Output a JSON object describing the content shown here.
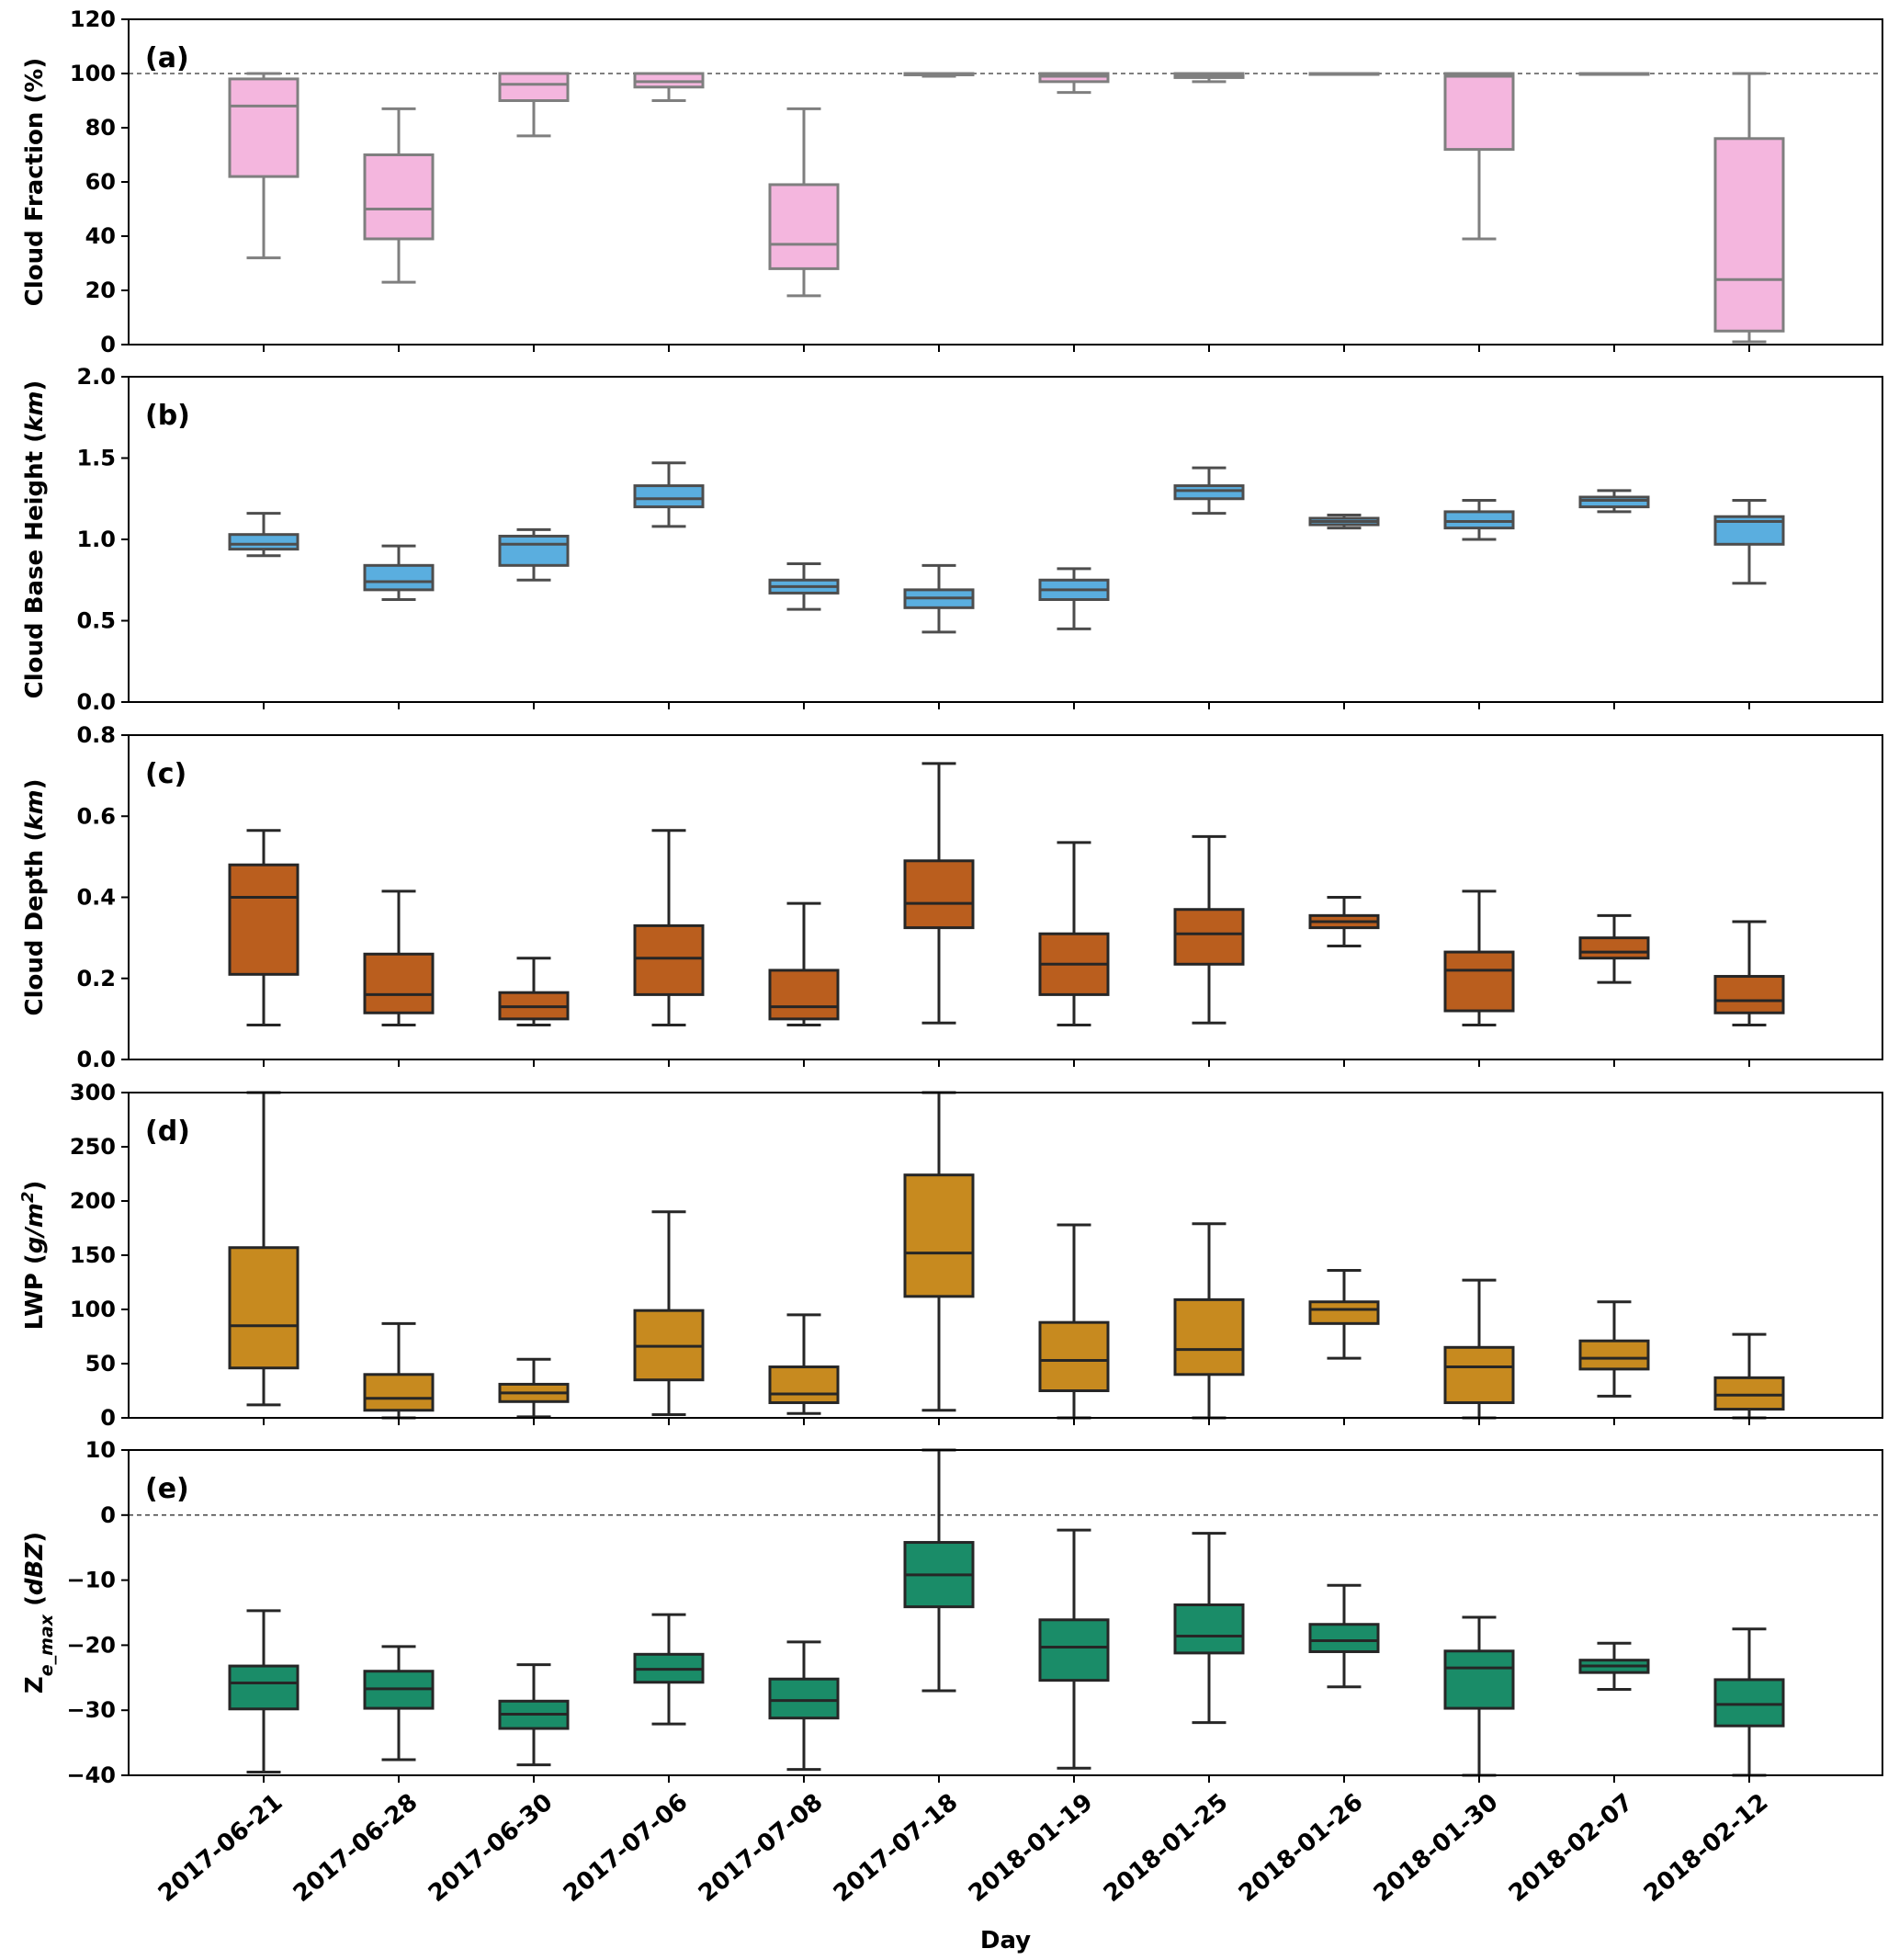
{
  "chart_data": {
    "type": "boxplot",
    "categories": [
      "2017-06-21",
      "2017-06-28",
      "2017-06-30",
      "2017-07-06",
      "2017-07-08",
      "2017-07-18",
      "2018-01-19",
      "2018-01-25",
      "2018-01-26",
      "2018-01-30",
      "2018-02-07",
      "2018-02-12"
    ],
    "xlabel": "Day",
    "panels": [
      {
        "label": "(a)",
        "ylabel": "Cloud Fraction (%)",
        "ylim": [
          0,
          120
        ],
        "yticks": [
          0,
          20,
          40,
          60,
          80,
          100,
          120
        ],
        "yticklabels": [
          "0",
          "20",
          "40",
          "60",
          "80",
          "100",
          "120"
        ],
        "refline": 100,
        "color": "#F4B6DE",
        "edge": "#7f7f7f",
        "boxes": [
          {
            "whislo": 32,
            "q1": 62,
            "med": 88,
            "q3": 98,
            "whishi": 100
          },
          {
            "whislo": 23,
            "q1": 39,
            "med": 50,
            "q3": 70,
            "whishi": 87
          },
          {
            "whislo": 77,
            "q1": 90,
            "med": 96,
            "q3": 100,
            "whishi": 100
          },
          {
            "whislo": 90,
            "q1": 95,
            "med": 97,
            "q3": 100,
            "whishi": 100
          },
          {
            "whislo": 18,
            "q1": 28,
            "med": 37,
            "q3": 59,
            "whishi": 87
          },
          {
            "whislo": 99,
            "q1": 99.5,
            "med": 100,
            "q3": 100,
            "whishi": 100
          },
          {
            "whislo": 93,
            "q1": 97,
            "med": 99,
            "q3": 100,
            "whishi": 100
          },
          {
            "whislo": 97,
            "q1": 98.5,
            "med": 99.5,
            "q3": 100,
            "whishi": 100
          },
          {
            "whislo": 100,
            "q1": 100,
            "med": 100,
            "q3": 100,
            "whishi": 100
          },
          {
            "whislo": 39,
            "q1": 72,
            "med": 99,
            "q3": 100,
            "whishi": 100
          },
          {
            "whislo": 100,
            "q1": 100,
            "med": 100,
            "q3": 100,
            "whishi": 100
          },
          {
            "whislo": 1,
            "q1": 5,
            "med": 24,
            "q3": 76,
            "whishi": 100
          }
        ]
      },
      {
        "label": "(b)",
        "ylabel": "Cloud Base Height",
        "yunit": "km",
        "ylim": [
          0,
          2.0
        ],
        "yticks": [
          0,
          0.5,
          1.0,
          1.5,
          2.0
        ],
        "yticklabels": [
          "0.0",
          "0.5",
          "1.0",
          "1.5",
          "2.0"
        ],
        "color": "#5AAEDF",
        "edge": "#4d4d4d",
        "boxes": [
          {
            "whislo": 0.9,
            "q1": 0.94,
            "med": 0.97,
            "q3": 1.03,
            "whishi": 1.16
          },
          {
            "whislo": 0.63,
            "q1": 0.69,
            "med": 0.74,
            "q3": 0.84,
            "whishi": 0.96
          },
          {
            "whislo": 0.75,
            "q1": 0.84,
            "med": 0.97,
            "q3": 1.02,
            "whishi": 1.06
          },
          {
            "whislo": 1.08,
            "q1": 1.2,
            "med": 1.25,
            "q3": 1.33,
            "whishi": 1.47
          },
          {
            "whislo": 0.57,
            "q1": 0.67,
            "med": 0.71,
            "q3": 0.75,
            "whishi": 0.85
          },
          {
            "whislo": 0.43,
            "q1": 0.58,
            "med": 0.64,
            "q3": 0.69,
            "whishi": 0.84
          },
          {
            "whislo": 0.45,
            "q1": 0.63,
            "med": 0.69,
            "q3": 0.75,
            "whishi": 0.82
          },
          {
            "whislo": 1.16,
            "q1": 1.25,
            "med": 1.3,
            "q3": 1.33,
            "whishi": 1.44
          },
          {
            "whislo": 1.07,
            "q1": 1.09,
            "med": 1.11,
            "q3": 1.13,
            "whishi": 1.15
          },
          {
            "whislo": 1.0,
            "q1": 1.07,
            "med": 1.11,
            "q3": 1.17,
            "whishi": 1.24
          },
          {
            "whislo": 1.17,
            "q1": 1.2,
            "med": 1.24,
            "q3": 1.26,
            "whishi": 1.3
          },
          {
            "whislo": 0.73,
            "q1": 0.97,
            "med": 1.11,
            "q3": 1.14,
            "whishi": 1.24
          }
        ]
      },
      {
        "label": "(c)",
        "ylabel": "Cloud Depth",
        "yunit": "km",
        "ylim": [
          0,
          0.8
        ],
        "yticks": [
          0,
          0.2,
          0.4,
          0.6,
          0.8
        ],
        "yticklabels": [
          "0.0",
          "0.2",
          "0.4",
          "0.6",
          "0.8"
        ],
        "color": "#BA5E1E",
        "edge": "#262626",
        "boxes": [
          {
            "whislo": 0.085,
            "q1": 0.21,
            "med": 0.4,
            "q3": 0.48,
            "whishi": 0.565
          },
          {
            "whislo": 0.085,
            "q1": 0.115,
            "med": 0.16,
            "q3": 0.26,
            "whishi": 0.415
          },
          {
            "whislo": 0.085,
            "q1": 0.1,
            "med": 0.13,
            "q3": 0.165,
            "whishi": 0.25
          },
          {
            "whislo": 0.085,
            "q1": 0.16,
            "med": 0.25,
            "q3": 0.33,
            "whishi": 0.565
          },
          {
            "whislo": 0.085,
            "q1": 0.1,
            "med": 0.13,
            "q3": 0.22,
            "whishi": 0.385
          },
          {
            "whislo": 0.09,
            "q1": 0.325,
            "med": 0.385,
            "q3": 0.49,
            "whishi": 0.73
          },
          {
            "whislo": 0.085,
            "q1": 0.16,
            "med": 0.235,
            "q3": 0.31,
            "whishi": 0.535
          },
          {
            "whislo": 0.09,
            "q1": 0.235,
            "med": 0.31,
            "q3": 0.37,
            "whishi": 0.55
          },
          {
            "whislo": 0.28,
            "q1": 0.325,
            "med": 0.34,
            "q3": 0.355,
            "whishi": 0.4
          },
          {
            "whislo": 0.085,
            "q1": 0.12,
            "med": 0.22,
            "q3": 0.265,
            "whishi": 0.415
          },
          {
            "whislo": 0.19,
            "q1": 0.25,
            "med": 0.265,
            "q3": 0.3,
            "whishi": 0.355
          },
          {
            "whislo": 0.085,
            "q1": 0.115,
            "med": 0.145,
            "q3": 0.205,
            "whishi": 0.34
          }
        ]
      },
      {
        "label": "(d)",
        "ylabel": "LWP",
        "yunit": "g/m",
        "yunit_sup": "2",
        "ylim": [
          0,
          300
        ],
        "yticks": [
          0,
          50,
          100,
          150,
          200,
          250,
          300
        ],
        "yticklabels": [
          "0",
          "50",
          "100",
          "150",
          "200",
          "250",
          "300"
        ],
        "color": "#C78A1F",
        "edge": "#262626",
        "boxes": [
          {
            "whislo": 12,
            "q1": 46,
            "med": 85,
            "q3": 157,
            "whishi": 300
          },
          {
            "whislo": 0,
            "q1": 7,
            "med": 18,
            "q3": 40,
            "whishi": 87
          },
          {
            "whislo": 1,
            "q1": 15,
            "med": 23,
            "q3": 31,
            "whishi": 54
          },
          {
            "whislo": 3,
            "q1": 35,
            "med": 66,
            "q3": 99,
            "whishi": 190
          },
          {
            "whislo": 4,
            "q1": 14,
            "med": 22,
            "q3": 47,
            "whishi": 95
          },
          {
            "whislo": 7,
            "q1": 112,
            "med": 152,
            "q3": 224,
            "whishi": 300
          },
          {
            "whislo": 0,
            "q1": 25,
            "med": 53,
            "q3": 88,
            "whishi": 178
          },
          {
            "whislo": 0,
            "q1": 40,
            "med": 63,
            "q3": 109,
            "whishi": 179
          },
          {
            "whislo": 55,
            "q1": 87,
            "med": 100,
            "q3": 107,
            "whishi": 136
          },
          {
            "whislo": 0,
            "q1": 14,
            "med": 47,
            "q3": 65,
            "whishi": 127
          },
          {
            "whislo": 20,
            "q1": 45,
            "med": 55,
            "q3": 71,
            "whishi": 107
          },
          {
            "whislo": 0,
            "q1": 8,
            "med": 21,
            "q3": 37,
            "whishi": 77
          }
        ]
      },
      {
        "label": "(e)",
        "ylabel": "Z",
        "ysub": "e_max",
        "yunit": "dBZ",
        "ylim": [
          -40,
          10
        ],
        "yticks": [
          -40,
          -30,
          -20,
          -10,
          0,
          10
        ],
        "yticklabels": [
          "−40",
          "−30",
          "−20",
          "−10",
          "0",
          "10"
        ],
        "refline": 0,
        "color": "#1A8C68",
        "edge": "#262626",
        "boxes": [
          {
            "whislo": -39.5,
            "q1": -29.8,
            "med": -25.8,
            "q3": -23.2,
            "whishi": -14.7
          },
          {
            "whislo": -37.6,
            "q1": -29.7,
            "med": -26.7,
            "q3": -24.0,
            "whishi": -20.2
          },
          {
            "whislo": -38.4,
            "q1": -32.8,
            "med": -30.6,
            "q3": -28.6,
            "whishi": -23.0
          },
          {
            "whislo": -32.1,
            "q1": -25.7,
            "med": -23.7,
            "q3": -21.4,
            "whishi": -15.3
          },
          {
            "whislo": -39.1,
            "q1": -31.2,
            "med": -28.5,
            "q3": -25.2,
            "whishi": -19.5
          },
          {
            "whislo": -27.0,
            "q1": -14.1,
            "med": -9.2,
            "q3": -4.2,
            "whishi": 10.0
          },
          {
            "whislo": -38.9,
            "q1": -25.4,
            "med": -20.3,
            "q3": -16.1,
            "whishi": -2.3
          },
          {
            "whislo": -31.9,
            "q1": -21.2,
            "med": -18.6,
            "q3": -13.8,
            "whishi": -2.8
          },
          {
            "whislo": -26.4,
            "q1": -21.0,
            "med": -19.3,
            "q3": -16.8,
            "whishi": -10.8
          },
          {
            "whislo": -40.0,
            "q1": -29.7,
            "med": -23.5,
            "q3": -20.9,
            "whishi": -15.7
          },
          {
            "whislo": -26.8,
            "q1": -24.2,
            "med": -23.2,
            "q3": -22.3,
            "whishi": -19.7
          },
          {
            "whislo": -40.0,
            "q1": -32.4,
            "med": -29.1,
            "q3": -25.3,
            "whishi": -17.5
          }
        ]
      }
    ]
  }
}
